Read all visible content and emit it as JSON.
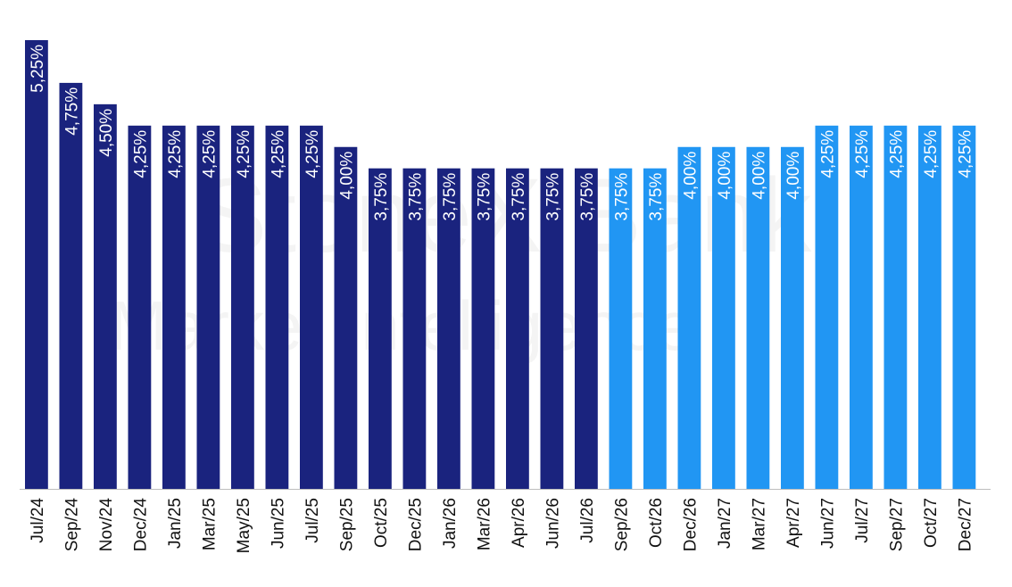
{
  "chart_data": {
    "type": "bar",
    "categories": [
      "Jul/24",
      "Sep/24",
      "Nov/24",
      "Dec/24",
      "Jan/25",
      "Mar/25",
      "May/25",
      "Jun/25",
      "Jul/25",
      "Sep/25",
      "Oct/25",
      "Dec/25",
      "Jan/26",
      "Mar/26",
      "Apr/26",
      "Jun/26",
      "Jul/26",
      "Sep/26",
      "Oct/26",
      "Dec/26",
      "Jan/27",
      "Mar/27",
      "Apr/27",
      "Jun/27",
      "Jul/27",
      "Sep/27",
      "Oct/27",
      "Dec/27"
    ],
    "values": [
      5.25,
      4.75,
      4.5,
      4.25,
      4.25,
      4.25,
      4.25,
      4.25,
      4.25,
      4.0,
      3.75,
      3.75,
      3.75,
      3.75,
      3.75,
      3.75,
      3.75,
      3.75,
      3.75,
      4.0,
      4.0,
      4.0,
      4.0,
      4.25,
      4.25,
      4.25,
      4.25,
      4.25
    ],
    "labels": [
      "5,25%",
      "4,75%",
      "4,50%",
      "4,25%",
      "4,25%",
      "4,25%",
      "4,25%",
      "4,25%",
      "4,25%",
      "4,00%",
      "3,75%",
      "3,75%",
      "3,75%",
      "3,75%",
      "3,75%",
      "3,75%",
      "3,75%",
      "3,75%",
      "3,75%",
      "4,00%",
      "4,00%",
      "4,00%",
      "4,00%",
      "4,25%",
      "4,25%",
      "4,25%",
      "4,25%",
      "4,25%"
    ],
    "segments": [
      "actual",
      "actual",
      "actual",
      "actual",
      "actual",
      "actual",
      "actual",
      "actual",
      "actual",
      "actual",
      "actual",
      "actual",
      "actual",
      "actual",
      "actual",
      "actual",
      "actual",
      "forecast",
      "forecast",
      "forecast",
      "forecast",
      "forecast",
      "forecast",
      "forecast",
      "forecast",
      "forecast",
      "forecast",
      "forecast"
    ],
    "colors": {
      "actual": "#1a237e",
      "forecast": "#2196f3",
      "axis": "#bdbdbd",
      "label": "#ffffff",
      "tick": "#111111"
    },
    "ylim": [
      0,
      5.25
    ],
    "grid": false,
    "legend": "none",
    "title": "",
    "xlabel": "",
    "ylabel": ""
  },
  "watermark": {
    "line1": "StoneX Bank",
    "line2": "Market Intelligence"
  }
}
